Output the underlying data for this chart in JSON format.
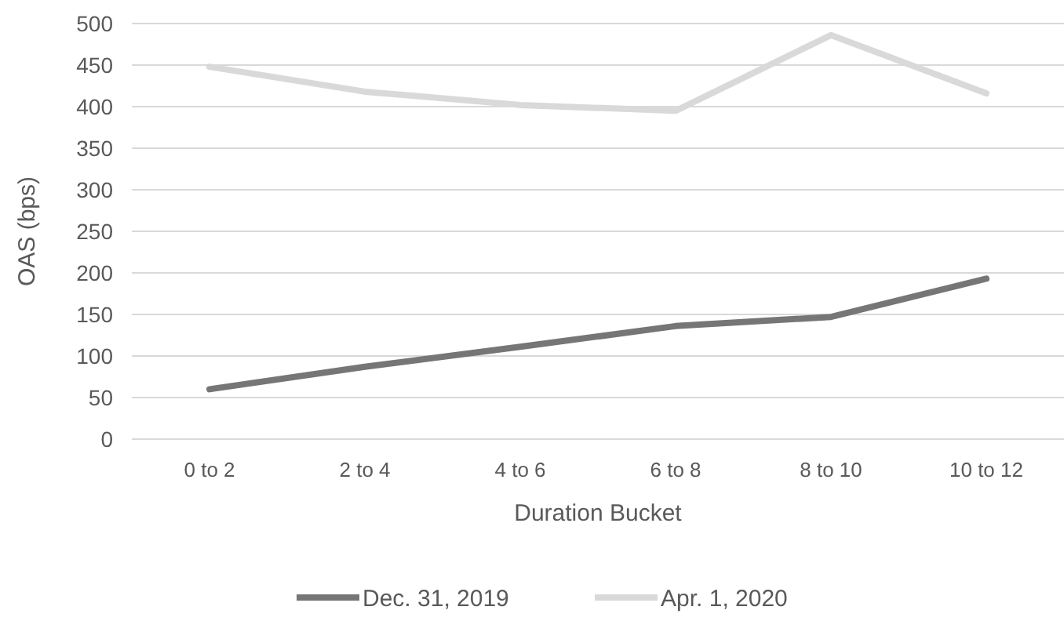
{
  "chart_data": {
    "type": "line",
    "xlabel": "Duration Bucket",
    "ylabel": "OAS (bps)",
    "categories": [
      "0 to 2",
      "2 to 4",
      "4 to 6",
      "6 to 8",
      "8 to 10",
      "10 to 12"
    ],
    "series": [
      {
        "name": "Dec. 31, 2019",
        "color": "#767676",
        "values": [
          60,
          87,
          111,
          136,
          147,
          193
        ]
      },
      {
        "name": "Apr. 1, 2020",
        "color": "#d9d9d9",
        "values": [
          448,
          418,
          402,
          395,
          486,
          416
        ]
      }
    ],
    "ylim": [
      0,
      500
    ],
    "yticks": [
      0,
      50,
      100,
      150,
      200,
      250,
      300,
      350,
      400,
      450,
      500
    ],
    "grid": "y",
    "legend": "bottom",
    "marker": "none",
    "line_style": "solid"
  }
}
